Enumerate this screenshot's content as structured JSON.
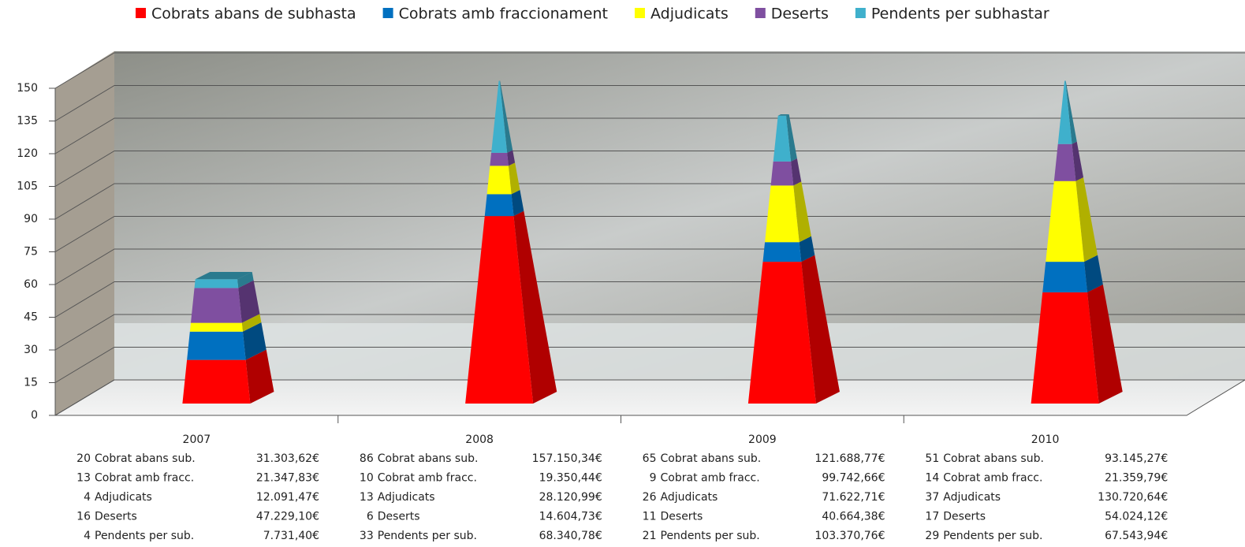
{
  "chart_data": {
    "type": "pyramid",
    "categories": [
      "2007",
      "2008",
      "2009",
      "2010"
    ],
    "ylim": [
      0,
      150
    ],
    "yticks": [
      0,
      15,
      30,
      45,
      60,
      75,
      90,
      105,
      120,
      135,
      150
    ],
    "grid": true,
    "legend": "top",
    "detail_labels": [
      "Cobrat abans sub.",
      "Cobrat amb fracc.",
      "Adjudicats",
      "Deserts",
      "Pendents per sub."
    ],
    "series": [
      {
        "name": "Cobrats abans de subhasta",
        "color": "#ff0000",
        "side_color": "#b00000",
        "values": [
          20,
          86,
          65,
          51
        ],
        "amount_labels": [
          "31.303,62€",
          "157.150,34€",
          "121.688,77€",
          "93.145,27€"
        ]
      },
      {
        "name": "Cobrats amb fraccionament",
        "color": "#0070c0",
        "side_color": "#004a80",
        "values": [
          13,
          10,
          9,
          14
        ],
        "amount_labels": [
          "21.347,83€",
          "19.350,44€",
          "99.742,66€",
          "21.359,79€"
        ]
      },
      {
        "name": "Adjudicats",
        "color": "#ffff00",
        "side_color": "#b0b000",
        "values": [
          4,
          13,
          26,
          37
        ],
        "amount_labels": [
          "12.091,47€",
          "28.120,99€",
          "71.622,71€",
          "130.720,64€"
        ]
      },
      {
        "name": "Deserts",
        "color": "#7f4fa0",
        "side_color": "#553370",
        "values": [
          16,
          6,
          11,
          17
        ],
        "amount_labels": [
          "47.229,10€",
          "14.604,73€",
          "40.664,38€",
          "54.024,12€"
        ]
      },
      {
        "name": "Pendents per subhastar",
        "color": "#3fb0cc",
        "side_color": "#2a7a8e",
        "values": [
          4,
          33,
          21,
          29
        ],
        "amount_labels": [
          "7.731,40€",
          "68.340,78€",
          "103.370,76€",
          "67.543,94€"
        ]
      }
    ]
  }
}
